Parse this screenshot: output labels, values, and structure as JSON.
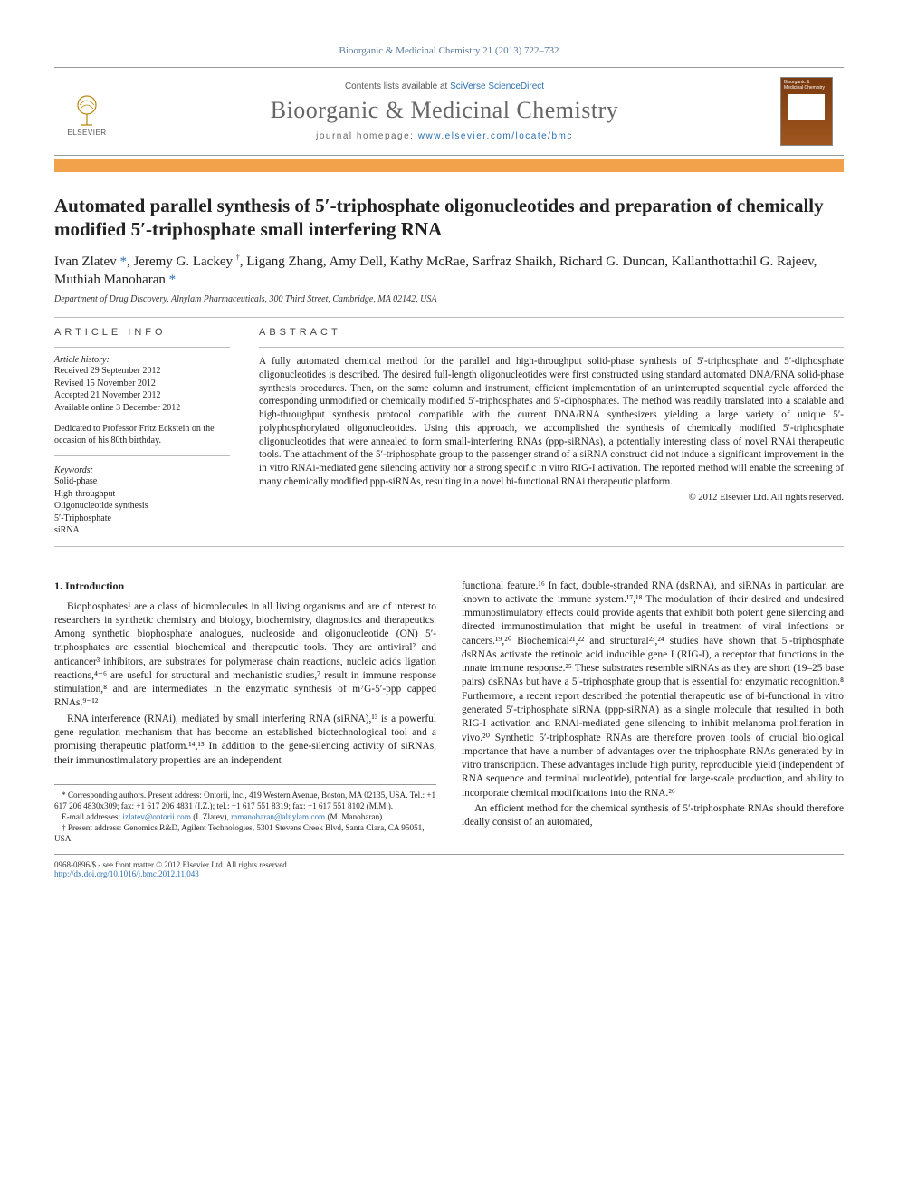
{
  "citation": "Bioorganic & Medicinal Chemistry 21 (2013) 722–732",
  "header": {
    "contents_prefix": "Contents lists available at ",
    "contents_link": "SciVerse ScienceDirect",
    "journal": "Bioorganic & Medicinal Chemistry",
    "homepage_prefix": "journal homepage: ",
    "homepage_link": "www.elsevier.com/locate/bmc",
    "publisher": "ELSEVIER",
    "cover_title": "Bioorganic & Medicinal Chemistry"
  },
  "colors": {
    "orange_bar": "#f2a24a",
    "link": "#2a6fb0",
    "citation_text": "#5a7a9a",
    "rule": "#bbbbbb",
    "cover_gradient_top": "#7a3a0f",
    "cover_gradient_bottom": "#a0561f"
  },
  "title": "Automated parallel synthesis of 5′-triphosphate oligonucleotides and preparation of chemically modified 5′-triphosphate small interfering RNA",
  "authors_html": "Ivan Zlatev <a href='#'>*</a>, Jeremy G. Lackey <sup class='black'>†</sup>, Ligang Zhang, Amy Dell, Kathy McRae, Sarfraz Shaikh, Richard G. Duncan, Kallanthottathil G. Rajeev, Muthiah Manoharan <a href='#'>*</a>",
  "affiliation": "Department of Drug Discovery, Alnylam Pharmaceuticals, 300 Third Street, Cambridge, MA 02142, USA",
  "info": {
    "heading": "ARTICLE INFO",
    "history_label": "Article history:",
    "received": "Received 29 September 2012",
    "revised": "Revised 15 November 2012",
    "accepted": "Accepted 21 November 2012",
    "online": "Available online 3 December 2012",
    "dedication": "Dedicated to Professor Fritz Eckstein on the occasion of his 80th birthday.",
    "kw_label": "Keywords:",
    "keywords": [
      "Solid-phase",
      "High-throughput",
      "Oligonucleotide synthesis",
      "5′-Triphosphate",
      "siRNA"
    ]
  },
  "abstract": {
    "heading": "ABSTRACT",
    "text": "A fully automated chemical method for the parallel and high-throughput solid-phase synthesis of 5′-triphosphate and 5′-diphosphate oligonucleotides is described. The desired full-length oligonucleotides were first constructed using standard automated DNA/RNA solid-phase synthesis procedures. Then, on the same column and instrument, efficient implementation of an uninterrupted sequential cycle afforded the corresponding unmodified or chemically modified 5′-triphosphates and 5′-diphosphates. The method was readily translated into a scalable and high-throughput synthesis protocol compatible with the current DNA/RNA synthesizers yielding a large variety of unique 5′-polyphosphorylated oligonucleotides. Using this approach, we accomplished the synthesis of chemically modified 5′-triphosphate oligonucleotides that were annealed to form small-interfering RNAs (ppp-siRNAs), a potentially interesting class of novel RNAi therapeutic tools. The attachment of the 5′-triphosphate group to the passenger strand of a siRNA construct did not induce a significant improvement in the in vitro RNAi-mediated gene silencing activity nor a strong specific in vitro RIG-I activation. The reported method will enable the screening of many chemically modified ppp-siRNAs, resulting in a novel bi-functional RNAi therapeutic platform.",
    "copyright": "© 2012 Elsevier Ltd. All rights reserved."
  },
  "body": {
    "heading": "1. Introduction",
    "left": [
      "Biophosphates¹ are a class of biomolecules in all living organisms and are of interest to researchers in synthetic chemistry and biology, biochemistry, diagnostics and therapeutics. Among synthetic biophosphate analogues, nucleoside and oligonucleotide (ON) 5′-triphosphates are essential biochemical and therapeutic tools. They are antiviral² and anticancer³ inhibitors, are substrates for polymerase chain reactions, nucleic acids ligation reactions,⁴⁻⁶ are useful for structural and mechanistic studies,⁷ result in immune response stimulation,⁸ and are intermediates in the enzymatic synthesis of m⁷G-5′-ppp capped RNAs.⁹⁻¹²",
      "RNA interference (RNAi), mediated by small interfering RNA (siRNA),¹³ is a powerful gene regulation mechanism that has become an established biotechnological tool and a promising therapeutic platform.¹⁴,¹⁵ In addition to the gene-silencing activity of siRNAs, their immunostimulatory properties are an independent"
    ],
    "right": [
      "functional feature.¹⁶ In fact, double-stranded RNA (dsRNA), and siRNAs in particular, are known to activate the immune system.¹⁷,¹⁸ The modulation of their desired and undesired immunostimulatory effects could provide agents that exhibit both potent gene silencing and directed immunostimulation that might be useful in treatment of viral infections or cancers.¹⁹,²⁰ Biochemical²¹,²² and structural²³,²⁴ studies have shown that 5′-triphosphate dsRNAs activate the retinoic acid inducible gene I (RIG-I), a receptor that functions in the innate immune response.²⁵ These substrates resemble siRNAs as they are short (19–25 base pairs) dsRNAs but have a 5′-triphosphate group that is essential for enzymatic recognition.⁸ Furthermore, a recent report described the potential therapeutic use of bi-functional in vitro generated 5′-triphosphate siRNA (ppp-siRNA) as a single molecule that resulted in both RIG-I activation and RNAi-mediated gene silencing to inhibit melanoma proliferation in vivo.²⁰ Synthetic 5′-triphosphate RNAs are therefore proven tools of crucial biological importance that have a number of advantages over the triphosphate RNAs generated by in vitro transcription. These advantages include high purity, reproducible yield (independent of RNA sequence and terminal nucleotide), potential for large-scale production, and ability to incorporate chemical modifications into the RNA.²⁶",
      "An efficient method for the chemical synthesis of 5′-triphosphate RNAs should therefore ideally consist of an automated,"
    ]
  },
  "footnotes": {
    "corr": "* Corresponding authors. Present address: Ontorii, Inc., 419 Western Avenue, Boston, MA 02135, USA. Tel.: +1 617 206 4830x309; fax: +1 617 206 4831 (I.Z.); tel.: +1 617 551 8319; fax: +1 617 551 8102 (M.M.).",
    "email_label": "E-mail addresses: ",
    "email1": "izlatev@ontorii.com",
    "email1_who": " (I. Zlatev), ",
    "email2": "mmanoharan@alnylam.com",
    "email2_who": " (M. Manoharan).",
    "dagger": "† Present address: Genomics R&D, Agilent Technologies, 5301 Stevens Creek Blvd, Santa Clara, CA 95051, USA."
  },
  "bottom": {
    "left1": "0968-0896/$ - see front matter © 2012 Elsevier Ltd. All rights reserved.",
    "left2": "http://dx.doi.org/10.1016/j.bmc.2012.11.043"
  }
}
